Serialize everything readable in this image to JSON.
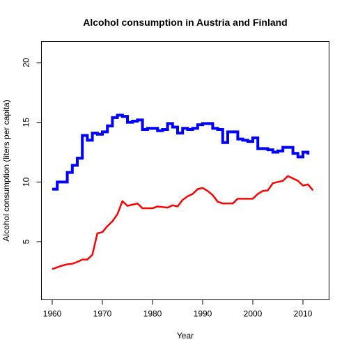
{
  "chart_data": {
    "type": "line",
    "title": "Alcohol consumption in Austria and Finland",
    "xlabel": "Year",
    "ylabel": "Alcohol consumption (liters per capita)",
    "xlim": [
      1958,
      1963.0
    ],
    "ylim": [
      0.6,
      22.0
    ],
    "xticks": [
      1960,
      1970,
      1980,
      1990,
      2000,
      2010
    ],
    "yticks": [
      5,
      10,
      15,
      20
    ],
    "grid": false,
    "legend": "none",
    "series": [
      {
        "color": "#0000ff",
        "line_style": "step",
        "x": [
          1960,
          1961,
          1962,
          1963,
          1964,
          1965,
          1966,
          1967,
          1968,
          1969,
          1970,
          1971,
          1972,
          1973,
          1974,
          1975,
          1976,
          1977,
          1978,
          1979,
          1980,
          1981,
          1982,
          1983,
          1984,
          1985,
          1986,
          1987,
          1988,
          1989,
          1990,
          1991,
          1992,
          1993,
          1994,
          1995,
          1996,
          1997,
          1998,
          1999,
          2000,
          2001,
          2002,
          2003,
          2004,
          2005,
          2006,
          2007,
          2008,
          2009,
          2010,
          2011
        ],
        "y": [
          9.4,
          10.0,
          10.0,
          10.8,
          11.4,
          12.0,
          13.9,
          13.5,
          14.1,
          14.0,
          14.2,
          14.7,
          15.4,
          15.6,
          15.5,
          15.0,
          15.1,
          15.2,
          14.4,
          14.5,
          14.5,
          14.3,
          14.4,
          14.9,
          14.6,
          14.1,
          14.5,
          14.4,
          14.5,
          14.8,
          14.9,
          14.9,
          14.5,
          14.4,
          13.3,
          14.2,
          14.2,
          13.6,
          13.5,
          13.4,
          13.7,
          12.8,
          12.8,
          12.7,
          12.5,
          12.6,
          12.9,
          12.9,
          12.4,
          12.1,
          12.5,
          12.3
        ]
      },
      {
        "color": "#ff0000",
        "line_style": "line",
        "x": [
          1960,
          1961,
          1962,
          1963,
          1964,
          1965,
          1966,
          1967,
          1968,
          1969,
          1970,
          1971,
          1972,
          1973,
          1974,
          1975,
          1976,
          1977,
          1978,
          1979,
          1980,
          1981,
          1982,
          1983,
          1984,
          1985,
          1986,
          1987,
          1988,
          1989,
          1990,
          1991,
          1992,
          1993,
          1994,
          1995,
          1996,
          1997,
          1998,
          1999,
          2000,
          2001,
          2002,
          2003,
          2004,
          2005,
          2006,
          2007,
          2008,
          2009,
          2010,
          2011,
          2012
        ],
        "y": [
          2.7,
          2.85,
          3.0,
          3.1,
          3.15,
          3.3,
          3.5,
          3.5,
          3.9,
          5.7,
          5.8,
          6.3,
          6.7,
          7.3,
          8.4,
          8.0,
          8.1,
          8.2,
          7.8,
          7.8,
          7.8,
          7.95,
          7.9,
          7.85,
          8.05,
          7.95,
          8.5,
          8.8,
          9.0,
          9.4,
          9.5,
          9.25,
          8.9,
          8.35,
          8.2,
          8.2,
          8.2,
          8.6,
          8.6,
          8.6,
          8.6,
          9.0,
          9.25,
          9.3,
          9.9,
          10.0,
          10.1,
          10.5,
          10.3,
          10.1,
          9.7,
          9.8,
          9.3
        ]
      }
    ]
  }
}
